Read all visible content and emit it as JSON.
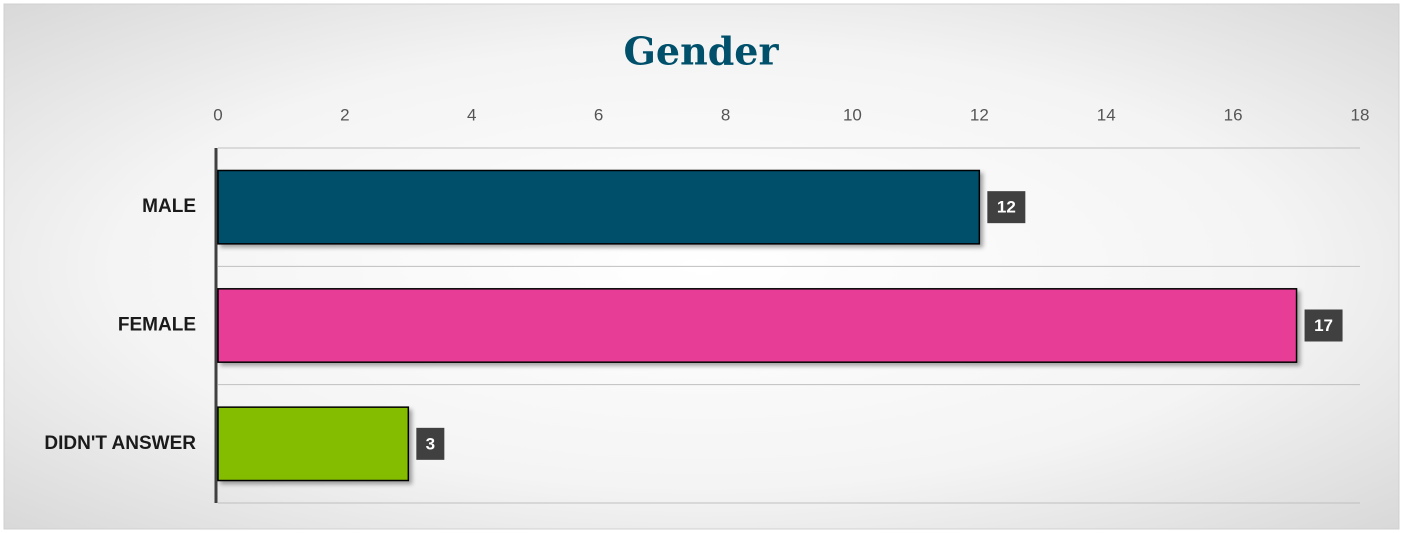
{
  "chart_data": {
    "type": "bar",
    "orientation": "horizontal",
    "title": "Gender",
    "categories": [
      "MALE",
      "FEMALE",
      "DIDN'T ANSWER"
    ],
    "values": [
      12,
      17,
      3
    ],
    "colors": [
      "#00506b",
      "#e83e96",
      "#84bd00"
    ],
    "xlim": [
      0,
      18
    ],
    "xticks": [
      0,
      2,
      4,
      6,
      8,
      10,
      12,
      14,
      16,
      18
    ],
    "grid": true,
    "data_labels": true
  }
}
